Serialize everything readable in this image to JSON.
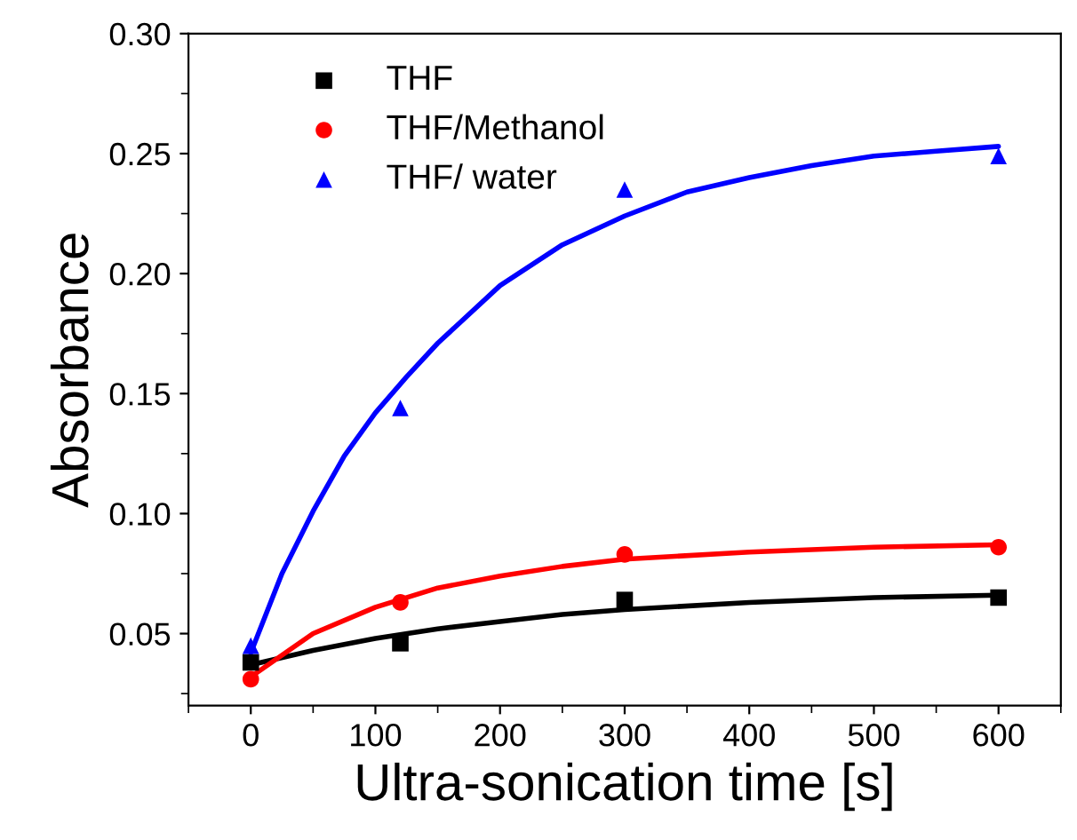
{
  "chart_data": {
    "type": "scatter",
    "xlabel": "Ultra-sonication time [s]",
    "ylabel": "Absorbance",
    "xlim": [
      -50,
      650
    ],
    "xticks": [
      0,
      100,
      200,
      300,
      400,
      500,
      600
    ],
    "ylim": [
      0.02,
      0.3
    ],
    "yticks": [
      {
        "value": 0.05,
        "label": "0.05"
      },
      {
        "value": 0.1,
        "label": "0.10"
      },
      {
        "value": 0.15,
        "label": "0.15"
      },
      {
        "value": 0.2,
        "label": "0.20"
      },
      {
        "value": 0.25,
        "label": "0.25"
      },
      {
        "value": 0.3,
        "label": "0.30"
      }
    ],
    "grid": false,
    "legend": "top left",
    "series": [
      {
        "name": "THF",
        "marker": "square",
        "color": "#000000",
        "x": [
          0,
          120,
          300,
          600
        ],
        "values": [
          0.038,
          0.046,
          0.064,
          0.065
        ]
      },
      {
        "name": "THF/Methanol",
        "marker": "circle",
        "color": "#ff0000",
        "x": [
          0,
          120,
          300,
          600
        ],
        "values": [
          0.031,
          0.063,
          0.083,
          0.086
        ]
      },
      {
        "name": "THF/ water",
        "marker": "triangle",
        "color": "#0000ff",
        "x": [
          0,
          120,
          300,
          600
        ],
        "values": [
          0.045,
          0.144,
          0.235,
          0.249
        ]
      },
      {
        "type": "line",
        "marker": "none",
        "color": "#000000",
        "x": [
          0,
          50,
          100,
          150,
          200,
          250,
          300,
          400,
          500,
          600
        ],
        "values": [
          0.037,
          0.043,
          0.048,
          0.052,
          0.055,
          0.058,
          0.06,
          0.063,
          0.065,
          0.066
        ]
      },
      {
        "type": "line",
        "marker": "none",
        "color": "#ff0000",
        "x": [
          0,
          50,
          100,
          150,
          200,
          250,
          300,
          400,
          500,
          600
        ],
        "values": [
          0.032,
          0.05,
          0.061,
          0.069,
          0.074,
          0.078,
          0.081,
          0.084,
          0.086,
          0.087
        ]
      },
      {
        "type": "line",
        "marker": "none",
        "color": "#0000ff",
        "x": [
          0,
          25,
          50,
          75,
          100,
          125,
          150,
          200,
          250,
          300,
          350,
          400,
          450,
          500,
          550,
          600
        ],
        "values": [
          0.042,
          0.075,
          0.101,
          0.124,
          0.142,
          0.157,
          0.171,
          0.195,
          0.212,
          0.224,
          0.234,
          0.24,
          0.245,
          0.249,
          0.251,
          0.253
        ]
      }
    ]
  }
}
